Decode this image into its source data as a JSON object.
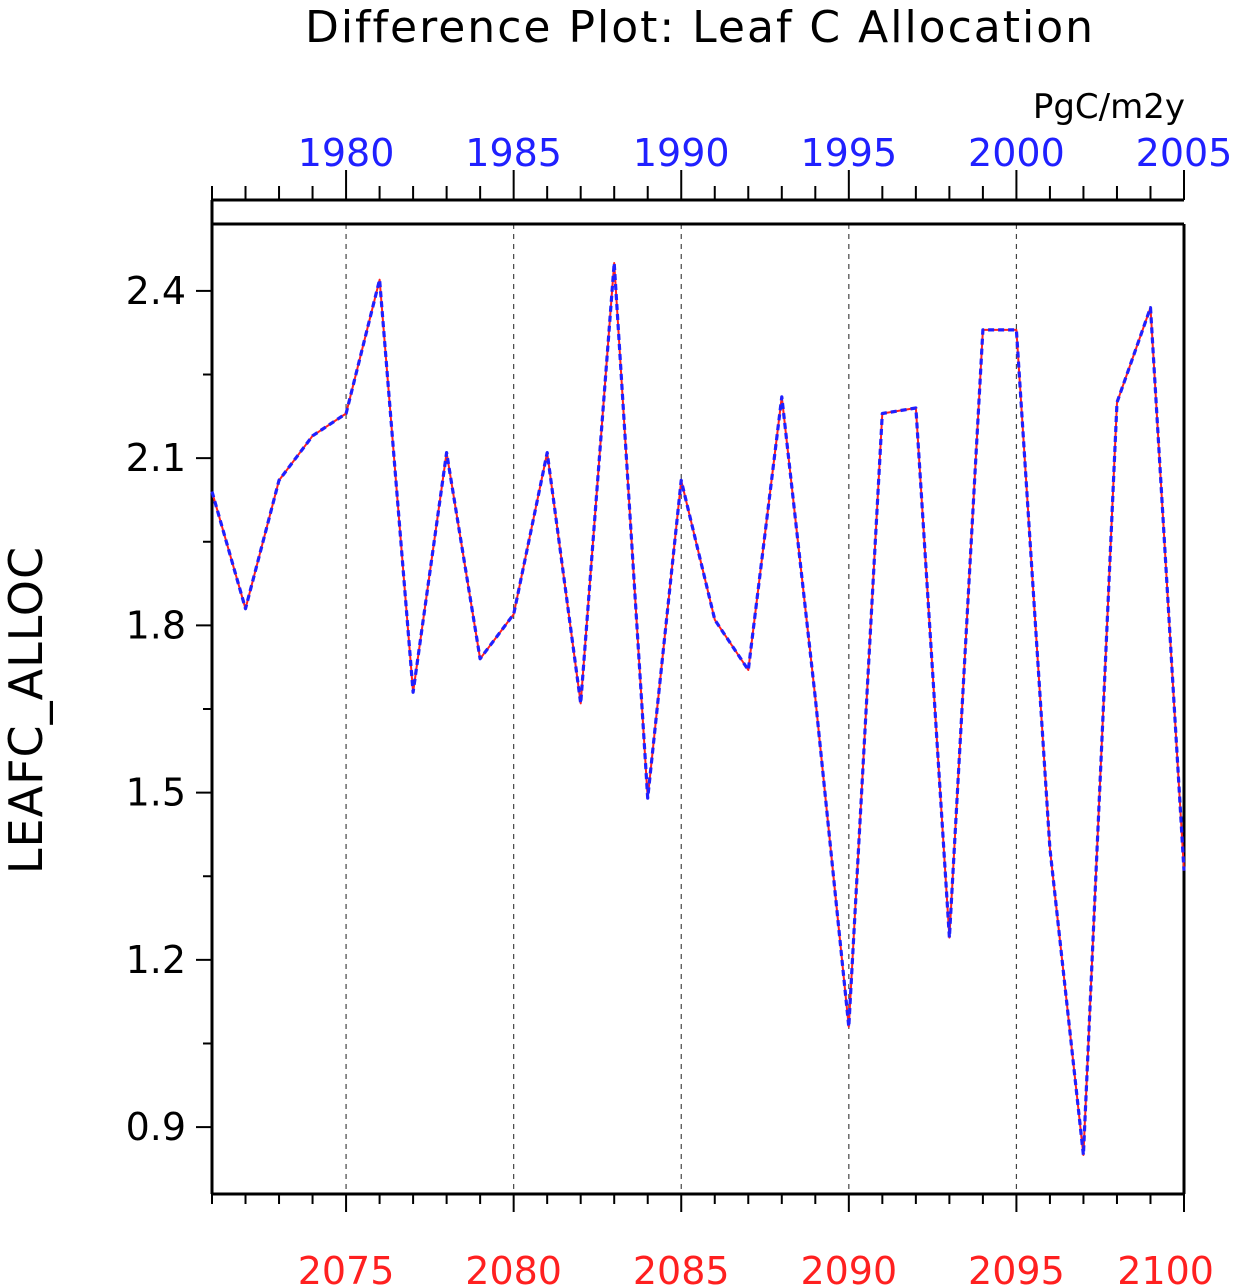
{
  "chart_data": {
    "type": "line",
    "title": "Difference Plot: Leaf C Allocation",
    "units": "PgC/m2y",
    "ylabel": "LEAFC_ALLOC",
    "ylim": [
      0.78,
      2.52
    ],
    "yticks": [
      0.9,
      1.2,
      1.5,
      1.8,
      2.1,
      2.4
    ],
    "ytick_labels": [
      "0.9",
      "1.2",
      "1.5",
      "1.8",
      "2.1",
      "2.4"
    ],
    "grid": "vertical dashed at labeled years",
    "x_bottom": {
      "color": "#ff2020",
      "range": [
        2071,
        2100
      ],
      "tick_values": [
        2075,
        2080,
        2085,
        2090,
        2095,
        2100
      ],
      "tick_labels": [
        "2075",
        "2080",
        "2085",
        "2090",
        "2095",
        "2100"
      ]
    },
    "x_top": {
      "color": "#2020ff",
      "range": [
        1976,
        2005
      ],
      "tick_values": [
        1980,
        1985,
        1990,
        1995,
        2000,
        2005
      ],
      "tick_labels": [
        "1980",
        "1985",
        "1990",
        "1995",
        "2000",
        "2005"
      ]
    },
    "x": [
      2071,
      2072,
      2073,
      2074,
      2075,
      2076,
      2077,
      2078,
      2079,
      2080,
      2081,
      2082,
      2083,
      2084,
      2085,
      2086,
      2087,
      2088,
      2089,
      2090,
      2091,
      2092,
      2093,
      2094,
      2095,
      2096,
      2097,
      2098,
      2099,
      2100
    ],
    "series": [
      {
        "color": "#ff2020",
        "style": "solid",
        "values": [
          2.04,
          1.83,
          2.06,
          2.14,
          2.18,
          2.42,
          1.68,
          2.11,
          1.74,
          1.82,
          2.11,
          1.66,
          2.45,
          1.49,
          2.06,
          1.81,
          1.72,
          2.21,
          1.67,
          1.08,
          2.18,
          2.19,
          1.24,
          2.33,
          2.33,
          1.4,
          0.85,
          2.2,
          2.37,
          1.36
        ]
      },
      {
        "color": "#2020ff",
        "style": "dashed",
        "values": [
          2.04,
          1.83,
          2.06,
          2.14,
          2.18,
          2.42,
          1.68,
          2.11,
          1.74,
          1.82,
          2.11,
          1.66,
          2.45,
          1.49,
          2.06,
          1.81,
          1.72,
          2.21,
          1.67,
          1.08,
          2.18,
          2.19,
          1.24,
          2.33,
          2.33,
          1.4,
          0.85,
          2.2,
          2.37,
          1.36
        ]
      }
    ]
  }
}
